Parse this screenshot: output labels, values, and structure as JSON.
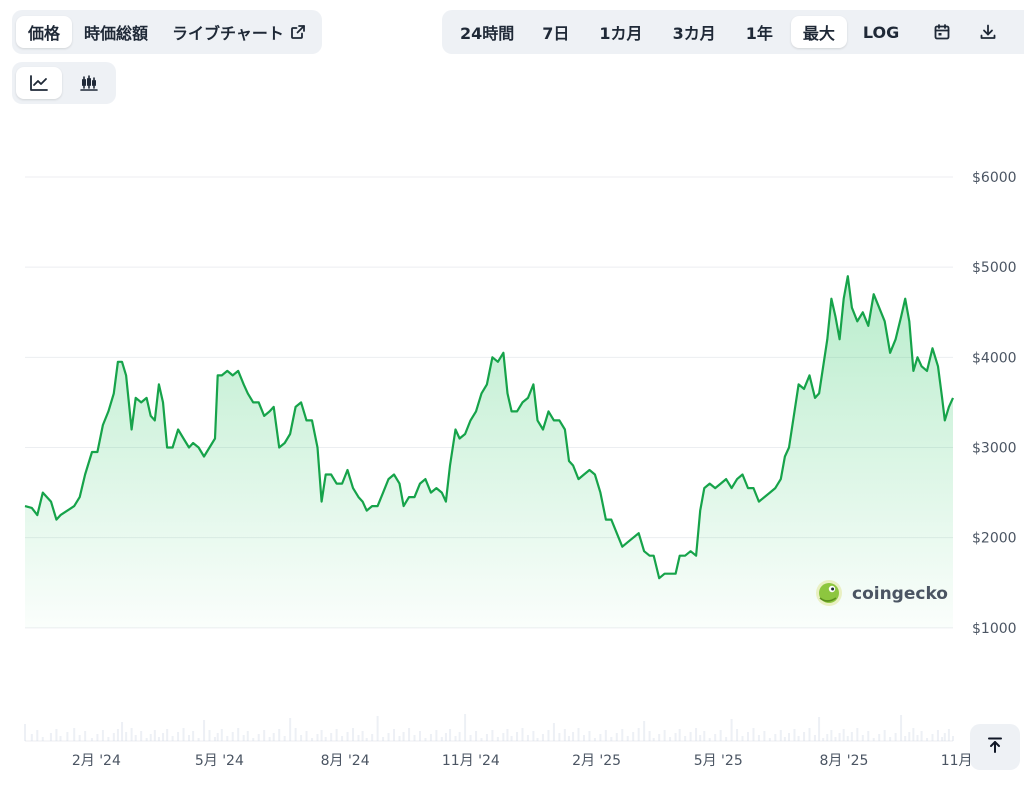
{
  "type_tabs": [
    {
      "label": "価格",
      "active": true
    },
    {
      "label": "時価総額",
      "active": false
    },
    {
      "label": "ライブチャート",
      "active": false
    }
  ],
  "range_tabs": [
    {
      "label": "24時間",
      "active": false
    },
    {
      "label": "7日",
      "active": false
    },
    {
      "label": "1カ月",
      "active": false
    },
    {
      "label": "3カ月",
      "active": false
    },
    {
      "label": "1年",
      "active": false
    },
    {
      "label": "最大",
      "active": true
    },
    {
      "label": "LOG",
      "active": false
    }
  ],
  "icons": {
    "external": "external-link-icon",
    "calendar": "calendar-icon",
    "download": "download-icon",
    "line_mode": "line-chart-icon",
    "candle_mode": "candlestick-icon",
    "scroll_top": "arrow-up-to-line-icon"
  },
  "watermark": "coingecko",
  "colors": {
    "line": "#16a34a",
    "fill": "#22c55e",
    "grid": "#eceef1",
    "volume": "#cbd5e1"
  },
  "chart_data": {
    "type": "area",
    "x_start": "2024-01-01",
    "x_end": "2025-11-10",
    "ylim": [
      0,
      6000
    ],
    "y_ticks": [
      1000,
      2000,
      3000,
      4000,
      5000,
      6000
    ],
    "y_tick_labels": [
      "$1000",
      "$2000",
      "$3000",
      "$4000",
      "$5000",
      "$6000"
    ],
    "x_ticks": [
      {
        "date": "2024-02-01",
        "label": "2月 '24"
      },
      {
        "date": "2024-05-01",
        "label": "5月 '24"
      },
      {
        "date": "2024-08-01",
        "label": "8月 '24"
      },
      {
        "date": "2024-11-01",
        "label": "11月 '24"
      },
      {
        "date": "2025-02-01",
        "label": "2月 '25"
      },
      {
        "date": "2025-05-01",
        "label": "5月 '25"
      },
      {
        "date": "2025-08-01",
        "label": "8月 '25"
      },
      {
        "date": "2025-11-01",
        "label": "11月 '25"
      }
    ],
    "grid": true,
    "series": [
      {
        "points": [
          [
            "2024-01-01",
            2350
          ],
          [
            "2024-01-06",
            2330
          ],
          [
            "2024-01-10",
            2250
          ],
          [
            "2024-01-14",
            2500
          ],
          [
            "2024-01-20",
            2400
          ],
          [
            "2024-01-24",
            2200
          ],
          [
            "2024-01-27",
            2250
          ],
          [
            "2024-02-01",
            2300
          ],
          [
            "2024-02-06",
            2350
          ],
          [
            "2024-02-10",
            2450
          ],
          [
            "2024-02-14",
            2700
          ],
          [
            "2024-02-19",
            2950
          ],
          [
            "2024-02-23",
            2950
          ],
          [
            "2024-02-27",
            3250
          ],
          [
            "2024-03-02",
            3400
          ],
          [
            "2024-03-06",
            3600
          ],
          [
            "2024-03-09",
            3950
          ],
          [
            "2024-03-12",
            3950
          ],
          [
            "2024-03-15",
            3800
          ],
          [
            "2024-03-19",
            3200
          ],
          [
            "2024-03-22",
            3550
          ],
          [
            "2024-03-26",
            3500
          ],
          [
            "2024-03-30",
            3550
          ],
          [
            "2024-04-02",
            3350
          ],
          [
            "2024-04-05",
            3300
          ],
          [
            "2024-04-08",
            3700
          ],
          [
            "2024-04-11",
            3500
          ],
          [
            "2024-04-14",
            3000
          ],
          [
            "2024-04-18",
            3000
          ],
          [
            "2024-04-22",
            3200
          ],
          [
            "2024-04-26",
            3100
          ],
          [
            "2024-04-30",
            3000
          ],
          [
            "2024-05-03",
            3050
          ],
          [
            "2024-05-07",
            3000
          ],
          [
            "2024-05-11",
            2900
          ],
          [
            "2024-05-15",
            3000
          ],
          [
            "2024-05-19",
            3100
          ],
          [
            "2024-05-21",
            3800
          ],
          [
            "2024-05-24",
            3800
          ],
          [
            "2024-05-28",
            3850
          ],
          [
            "2024-06-01",
            3800
          ],
          [
            "2024-06-05",
            3850
          ],
          [
            "2024-06-09",
            3700
          ],
          [
            "2024-06-12",
            3600
          ],
          [
            "2024-06-16",
            3500
          ],
          [
            "2024-06-20",
            3500
          ],
          [
            "2024-06-24",
            3350
          ],
          [
            "2024-06-28",
            3400
          ],
          [
            "2024-07-01",
            3450
          ],
          [
            "2024-07-05",
            3000
          ],
          [
            "2024-07-09",
            3050
          ],
          [
            "2024-07-13",
            3150
          ],
          [
            "2024-07-17",
            3450
          ],
          [
            "2024-07-21",
            3500
          ],
          [
            "2024-07-25",
            3300
          ],
          [
            "2024-07-29",
            3300
          ],
          [
            "2024-08-02",
            3000
          ],
          [
            "2024-08-05",
            2400
          ],
          [
            "2024-08-08",
            2700
          ],
          [
            "2024-08-12",
            2700
          ],
          [
            "2024-08-16",
            2600
          ],
          [
            "2024-08-20",
            2600
          ],
          [
            "2024-08-24",
            2750
          ],
          [
            "2024-08-28",
            2550
          ],
          [
            "2024-09-01",
            2450
          ],
          [
            "2024-09-04",
            2400
          ],
          [
            "2024-09-07",
            2300
          ],
          [
            "2024-09-11",
            2350
          ],
          [
            "2024-09-15",
            2350
          ],
          [
            "2024-09-19",
            2500
          ],
          [
            "2024-09-23",
            2650
          ],
          [
            "2024-09-27",
            2700
          ],
          [
            "2024-10-01",
            2600
          ],
          [
            "2024-10-04",
            2350
          ],
          [
            "2024-10-08",
            2450
          ],
          [
            "2024-10-12",
            2450
          ],
          [
            "2024-10-16",
            2600
          ],
          [
            "2024-10-20",
            2650
          ],
          [
            "2024-10-24",
            2500
          ],
          [
            "2024-10-28",
            2550
          ],
          [
            "2024-11-01",
            2500
          ],
          [
            "2024-11-04",
            2400
          ],
          [
            "2024-11-07",
            2800
          ],
          [
            "2024-11-11",
            3200
          ],
          [
            "2024-11-14",
            3100
          ],
          [
            "2024-11-18",
            3150
          ],
          [
            "2024-11-22",
            3300
          ],
          [
            "2024-11-26",
            3400
          ],
          [
            "2024-11-30",
            3600
          ],
          [
            "2024-12-04",
            3700
          ],
          [
            "2024-12-08",
            4000
          ],
          [
            "2024-12-12",
            3950
          ],
          [
            "2024-12-16",
            4050
          ],
          [
            "2024-12-19",
            3600
          ],
          [
            "2024-12-22",
            3400
          ],
          [
            "2024-12-26",
            3400
          ],
          [
            "2024-12-30",
            3500
          ],
          [
            "2025-01-03",
            3550
          ],
          [
            "2025-01-07",
            3700
          ],
          [
            "2025-01-10",
            3300
          ],
          [
            "2025-01-14",
            3200
          ],
          [
            "2025-01-18",
            3400
          ],
          [
            "2025-01-22",
            3300
          ],
          [
            "2025-01-26",
            3300
          ],
          [
            "2025-01-30",
            3200
          ],
          [
            "2025-02-02",
            2850
          ],
          [
            "2025-02-05",
            2800
          ],
          [
            "2025-02-09",
            2650
          ],
          [
            "2025-02-13",
            2700
          ],
          [
            "2025-02-17",
            2750
          ],
          [
            "2025-02-21",
            2700
          ],
          [
            "2025-02-25",
            2500
          ],
          [
            "2025-03-01",
            2200
          ],
          [
            "2025-03-05",
            2200
          ],
          [
            "2025-03-09",
            2050
          ],
          [
            "2025-03-13",
            1900
          ],
          [
            "2025-03-17",
            1950
          ],
          [
            "2025-03-21",
            2000
          ],
          [
            "2025-03-25",
            2050
          ],
          [
            "2025-03-29",
            1850
          ],
          [
            "2025-04-02",
            1800
          ],
          [
            "2025-04-05",
            1800
          ],
          [
            "2025-04-09",
            1550
          ],
          [
            "2025-04-13",
            1600
          ],
          [
            "2025-04-17",
            1600
          ],
          [
            "2025-04-21",
            1600
          ],
          [
            "2025-04-24",
            1800
          ],
          [
            "2025-04-28",
            1800
          ],
          [
            "2025-05-02",
            1850
          ],
          [
            "2025-05-06",
            1800
          ],
          [
            "2025-05-09",
            2300
          ],
          [
            "2025-05-12",
            2550
          ],
          [
            "2025-05-16",
            2600
          ],
          [
            "2025-05-20",
            2550
          ],
          [
            "2025-05-24",
            2600
          ],
          [
            "2025-05-28",
            2650
          ],
          [
            "2025-06-01",
            2550
          ],
          [
            "2025-06-05",
            2650
          ],
          [
            "2025-06-09",
            2700
          ],
          [
            "2025-06-13",
            2550
          ],
          [
            "2025-06-17",
            2550
          ],
          [
            "2025-06-21",
            2400
          ],
          [
            "2025-06-25",
            2450
          ],
          [
            "2025-06-29",
            2500
          ],
          [
            "2025-07-03",
            2550
          ],
          [
            "2025-07-07",
            2650
          ],
          [
            "2025-07-10",
            2900
          ],
          [
            "2025-07-13",
            3000
          ],
          [
            "2025-07-17",
            3400
          ],
          [
            "2025-07-20",
            3700
          ],
          [
            "2025-07-24",
            3650
          ],
          [
            "2025-07-28",
            3800
          ],
          [
            "2025-08-01",
            3550
          ],
          [
            "2025-08-04",
            3600
          ],
          [
            "2025-08-07",
            3900
          ],
          [
            "2025-08-10",
            4200
          ],
          [
            "2025-08-13",
            4650
          ],
          [
            "2025-08-16",
            4450
          ],
          [
            "2025-08-19",
            4200
          ],
          [
            "2025-08-22",
            4650
          ],
          [
            "2025-08-25",
            4900
          ],
          [
            "2025-08-28",
            4550
          ],
          [
            "2025-09-01",
            4400
          ],
          [
            "2025-09-05",
            4500
          ],
          [
            "2025-09-09",
            4350
          ],
          [
            "2025-09-13",
            4700
          ],
          [
            "2025-09-17",
            4550
          ],
          [
            "2025-09-21",
            4400
          ],
          [
            "2025-09-25",
            4050
          ],
          [
            "2025-09-29",
            4200
          ],
          [
            "2025-10-03",
            4450
          ],
          [
            "2025-10-06",
            4650
          ],
          [
            "2025-10-09",
            4400
          ],
          [
            "2025-10-12",
            3850
          ],
          [
            "2025-10-15",
            4000
          ],
          [
            "2025-10-18",
            3900
          ],
          [
            "2025-10-22",
            3850
          ],
          [
            "2025-10-26",
            4100
          ],
          [
            "2025-10-30",
            3900
          ],
          [
            "2025-11-02",
            3550
          ],
          [
            "2025-11-04",
            3300
          ],
          [
            "2025-11-07",
            3450
          ],
          [
            "2025-11-10",
            3550
          ]
        ]
      }
    ]
  }
}
